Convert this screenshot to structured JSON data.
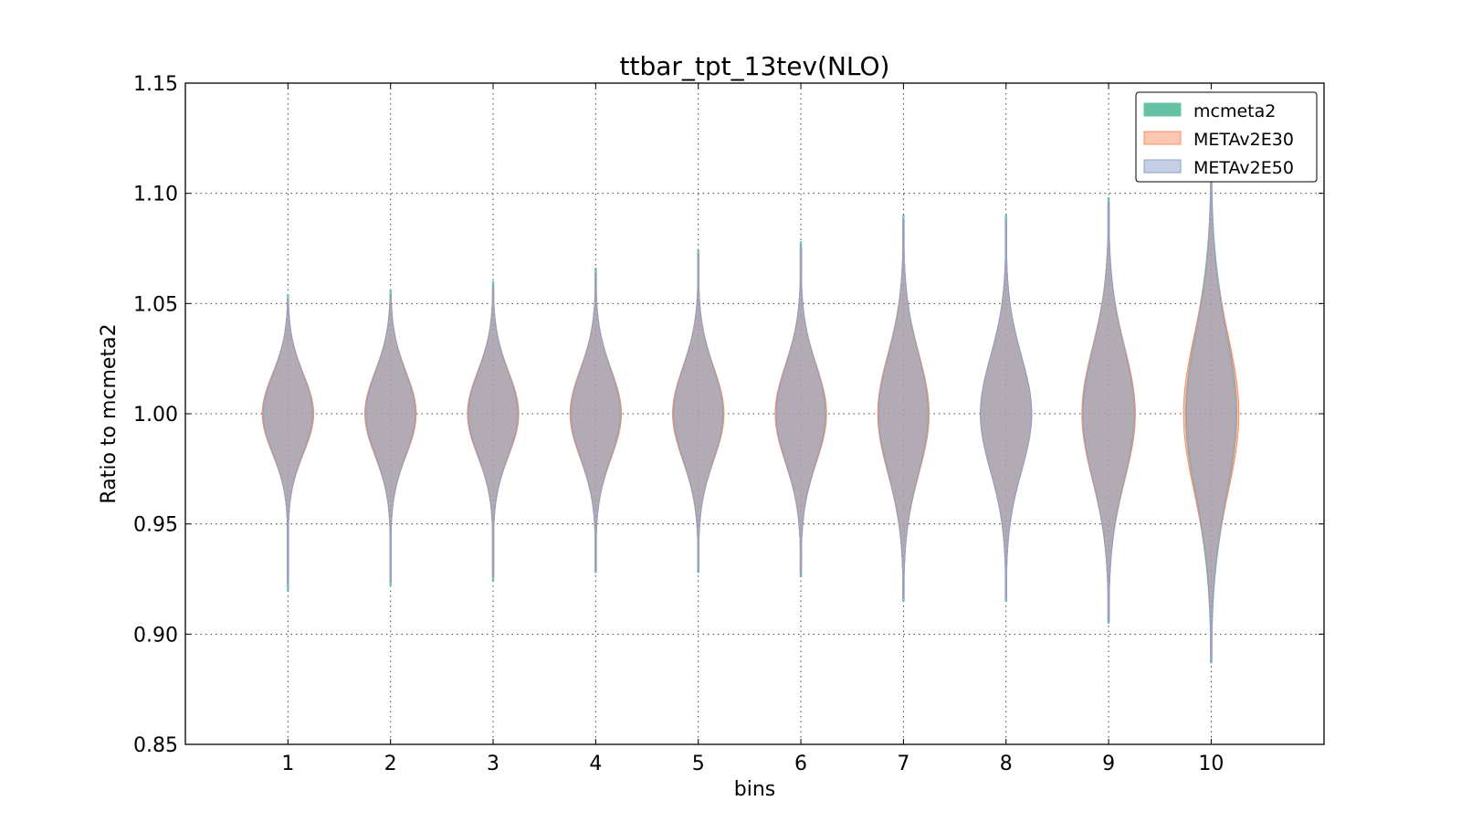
{
  "chart_data": {
    "type": "violin",
    "title": "ttbar_tpt_13tev(NLO)",
    "xlabel": "bins",
    "ylabel": "Ratio to mcmeta2",
    "ylim": [
      0.85,
      1.15
    ],
    "xlim": [
      0,
      11.1
    ],
    "yticks": [
      "0.85",
      "0.90",
      "0.95",
      "1.00",
      "1.05",
      "1.10",
      "1.15"
    ],
    "categories": [
      "1",
      "2",
      "3",
      "4",
      "5",
      "6",
      "7",
      "8",
      "9",
      "10"
    ],
    "grid": true,
    "legend_position": "top-right",
    "series": [
      {
        "name": "mcmeta2",
        "fill": "#66c2a5",
        "stroke": "#66c2a5",
        "bins": [
          {
            "x": 1,
            "min": 0.92,
            "max": 1.054,
            "sd": 0.018,
            "width": 0.25
          },
          {
            "x": 2,
            "min": 0.922,
            "max": 1.056,
            "sd": 0.019,
            "width": 0.25
          },
          {
            "x": 3,
            "min": 0.924,
            "max": 1.06,
            "sd": 0.019,
            "width": 0.25
          },
          {
            "x": 4,
            "min": 0.928,
            "max": 1.066,
            "sd": 0.02,
            "width": 0.25
          },
          {
            "x": 5,
            "min": 0.928,
            "max": 1.074,
            "sd": 0.021,
            "width": 0.25
          },
          {
            "x": 6,
            "min": 0.926,
            "max": 1.078,
            "sd": 0.022,
            "width": 0.25
          },
          {
            "x": 7,
            "min": 0.915,
            "max": 1.09,
            "sd": 0.027,
            "width": 0.25
          },
          {
            "x": 8,
            "min": 0.915,
            "max": 1.09,
            "sd": 0.026,
            "width": 0.25
          },
          {
            "x": 9,
            "min": 0.905,
            "max": 1.098,
            "sd": 0.03,
            "width": 0.26
          },
          {
            "x": 10,
            "min": 0.887,
            "max": 1.114,
            "sd": 0.038,
            "width": 0.25
          }
        ]
      },
      {
        "name": "METAv2E30",
        "fill": "#fc8d62",
        "stroke": "#fc8d62",
        "bins": [
          {
            "x": 1,
            "min": 0.925,
            "max": 1.05,
            "sd": 0.018,
            "width": 0.25
          },
          {
            "x": 2,
            "min": 0.926,
            "max": 1.052,
            "sd": 0.019,
            "width": 0.25
          },
          {
            "x": 3,
            "min": 0.928,
            "max": 1.056,
            "sd": 0.019,
            "width": 0.25
          },
          {
            "x": 4,
            "min": 0.93,
            "max": 1.062,
            "sd": 0.02,
            "width": 0.25
          },
          {
            "x": 5,
            "min": 0.93,
            "max": 1.07,
            "sd": 0.021,
            "width": 0.25
          },
          {
            "x": 6,
            "min": 0.929,
            "max": 1.074,
            "sd": 0.022,
            "width": 0.25
          },
          {
            "x": 7,
            "min": 0.917,
            "max": 1.086,
            "sd": 0.027,
            "width": 0.25
          },
          {
            "x": 8,
            "min": 0.917,
            "max": 1.086,
            "sd": 0.026,
            "width": 0.25
          },
          {
            "x": 9,
            "min": 0.907,
            "max": 1.094,
            "sd": 0.03,
            "width": 0.26
          },
          {
            "x": 10,
            "min": 0.89,
            "max": 1.108,
            "sd": 0.036,
            "width": 0.27
          }
        ]
      },
      {
        "name": "METAv2E50",
        "fill": "#8da0cb",
        "stroke": "#8da0cb",
        "bins": [
          {
            "x": 1,
            "min": 0.923,
            "max": 1.052,
            "sd": 0.018,
            "width": 0.24
          },
          {
            "x": 2,
            "min": 0.924,
            "max": 1.054,
            "sd": 0.019,
            "width": 0.24
          },
          {
            "x": 3,
            "min": 0.926,
            "max": 1.058,
            "sd": 0.019,
            "width": 0.24
          },
          {
            "x": 4,
            "min": 0.929,
            "max": 1.064,
            "sd": 0.02,
            "width": 0.24
          },
          {
            "x": 5,
            "min": 0.929,
            "max": 1.072,
            "sd": 0.021,
            "width": 0.24
          },
          {
            "x": 6,
            "min": 0.927,
            "max": 1.076,
            "sd": 0.022,
            "width": 0.24
          },
          {
            "x": 7,
            "min": 0.916,
            "max": 1.088,
            "sd": 0.027,
            "width": 0.24
          },
          {
            "x": 8,
            "min": 0.916,
            "max": 1.088,
            "sd": 0.026,
            "width": 0.25
          },
          {
            "x": 9,
            "min": 0.906,
            "max": 1.096,
            "sd": 0.03,
            "width": 0.25
          },
          {
            "x": 10,
            "min": 0.888,
            "max": 1.112,
            "sd": 0.037,
            "width": 0.24
          }
        ]
      }
    ]
  }
}
